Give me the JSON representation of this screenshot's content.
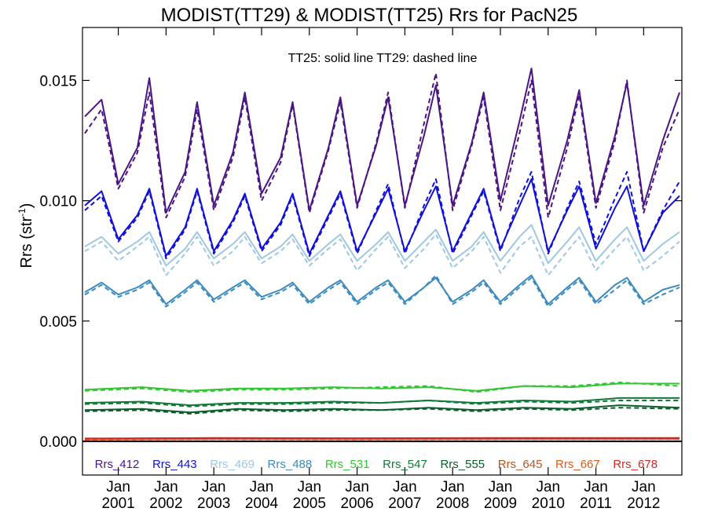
{
  "chart_data": {
    "type": "line",
    "title": "MODIST(TT29) & MODIST(TT25)  Rrs for PacN25",
    "ylabel": "Rrs (str",
    "ylabel_sup": "-1",
    "annotation": "TT25: solid line   TT29: dashed line",
    "xlim": [
      2000.25,
      2012.8
    ],
    "ylim": [
      -0.0014,
      0.0172
    ],
    "yticks": [
      0.0,
      0.005,
      0.01,
      0.015
    ],
    "ytick_labels": [
      "0.000",
      "0.005",
      "0.010",
      "0.015"
    ],
    "xticks": [
      2001,
      2002,
      2003,
      2004,
      2005,
      2006,
      2007,
      2008,
      2009,
      2010,
      2011,
      2012
    ],
    "xtick_top_labels": [
      "Jan",
      "Jan",
      "Jan",
      "Jan",
      "Jan",
      "Jan",
      "Jan",
      "Jan",
      "Jan",
      "Jan",
      "Jan",
      "Jan"
    ],
    "xtick_bottom_labels": [
      "2001",
      "2002",
      "2003",
      "2004",
      "2005",
      "2006",
      "2007",
      "2008",
      "2009",
      "2010",
      "2011",
      "2012"
    ],
    "zero_line": true,
    "grid": false,
    "legend_position": "bottom",
    "series": [
      {
        "name": "Rrs_412",
        "color": "#4b1583",
        "x": [
          2000.3,
          2000.65,
          2001.0,
          2001.4,
          2001.65,
          2002.0,
          2002.4,
          2002.65,
          2003.0,
          2003.4,
          2003.65,
          2004.0,
          2004.4,
          2004.65,
          2005.0,
          2005.4,
          2005.65,
          2006.0,
          2006.4,
          2006.65,
          2007.0,
          2007.4,
          2007.65,
          2008.0,
          2008.4,
          2008.65,
          2009.0,
          2009.4,
          2009.65,
          2010.0,
          2010.4,
          2010.65,
          2011.0,
          2011.4,
          2011.65,
          2012.0,
          2012.4,
          2012.75
        ],
        "tt25": [
          0.0135,
          0.0142,
          0.0107,
          0.0122,
          0.0151,
          0.0095,
          0.0112,
          0.0141,
          0.0098,
          0.012,
          0.0145,
          0.0103,
          0.0118,
          0.0141,
          0.0096,
          0.0122,
          0.0143,
          0.0098,
          0.0123,
          0.0143,
          0.0098,
          0.0127,
          0.0148,
          0.0098,
          0.0124,
          0.0145,
          0.01,
          0.0133,
          0.0155,
          0.0098,
          0.0125,
          0.0146,
          0.0099,
          0.0127,
          0.0149,
          0.0098,
          0.0125,
          0.0145
        ],
        "tt29": [
          0.0128,
          0.0138,
          0.0105,
          0.012,
          0.0145,
          0.0093,
          0.011,
          0.0138,
          0.0096,
          0.0118,
          0.0143,
          0.01,
          0.0116,
          0.014,
          0.0095,
          0.0121,
          0.0141,
          0.0097,
          0.0124,
          0.0145,
          0.0097,
          0.0132,
          0.0153,
          0.0096,
          0.0123,
          0.0143,
          0.0096,
          0.0128,
          0.015,
          0.0093,
          0.0122,
          0.0144,
          0.0097,
          0.0125,
          0.015,
          0.0095,
          0.0122,
          0.0138
        ]
      },
      {
        "name": "Rrs_443",
        "color": "#1010d8",
        "x": [
          2000.3,
          2000.65,
          2001.0,
          2001.4,
          2001.65,
          2002.0,
          2002.4,
          2002.65,
          2003.0,
          2003.4,
          2003.65,
          2004.0,
          2004.4,
          2004.65,
          2005.0,
          2005.4,
          2005.65,
          2006.0,
          2006.4,
          2006.65,
          2007.0,
          2007.4,
          2007.65,
          2008.0,
          2008.4,
          2008.65,
          2009.0,
          2009.4,
          2009.65,
          2010.0,
          2010.4,
          2010.65,
          2011.0,
          2011.4,
          2011.65,
          2012.0,
          2012.4,
          2012.75
        ],
        "tt25": [
          0.0098,
          0.0104,
          0.0084,
          0.0094,
          0.0105,
          0.0077,
          0.0089,
          0.0105,
          0.0079,
          0.0092,
          0.0103,
          0.008,
          0.0091,
          0.0103,
          0.0078,
          0.0094,
          0.0104,
          0.0079,
          0.0095,
          0.0105,
          0.0079,
          0.0096,
          0.0106,
          0.0079,
          0.0095,
          0.0105,
          0.008,
          0.0098,
          0.0109,
          0.0079,
          0.0096,
          0.0106,
          0.008,
          0.0097,
          0.0106,
          0.0079,
          0.0095,
          0.0102
        ],
        "tt29": [
          0.0096,
          0.0102,
          0.0083,
          0.0093,
          0.0104,
          0.0076,
          0.0088,
          0.0104,
          0.0078,
          0.0091,
          0.0102,
          0.0079,
          0.009,
          0.0102,
          0.0077,
          0.0093,
          0.0103,
          0.0078,
          0.0096,
          0.0107,
          0.0078,
          0.0098,
          0.0109,
          0.0078,
          0.0094,
          0.0104,
          0.0079,
          0.0101,
          0.0112,
          0.0078,
          0.0097,
          0.0108,
          0.0082,
          0.0101,
          0.0112,
          0.0079,
          0.0096,
          0.0108
        ]
      },
      {
        "name": "Rrs_469",
        "color": "#9ec8e2",
        "x": [
          2000.3,
          2000.65,
          2001.0,
          2001.4,
          2001.65,
          2002.0,
          2002.4,
          2002.65,
          2003.0,
          2003.4,
          2003.65,
          2004.0,
          2004.4,
          2004.65,
          2005.0,
          2005.4,
          2005.65,
          2006.0,
          2006.4,
          2006.65,
          2007.0,
          2007.4,
          2007.65,
          2008.0,
          2008.4,
          2008.65,
          2009.0,
          2009.4,
          2009.65,
          2010.0,
          2010.4,
          2010.65,
          2011.0,
          2011.4,
          2011.65,
          2012.0,
          2012.4,
          2012.75
        ],
        "tt25": [
          0.0081,
          0.0085,
          0.0078,
          0.0083,
          0.0087,
          0.0073,
          0.008,
          0.0087,
          0.0076,
          0.0082,
          0.0087,
          0.0076,
          0.0081,
          0.0086,
          0.0075,
          0.0082,
          0.0086,
          0.0075,
          0.0082,
          0.0087,
          0.0075,
          0.0083,
          0.0088,
          0.0075,
          0.0081,
          0.0087,
          0.0075,
          0.0085,
          0.009,
          0.0074,
          0.0083,
          0.0089,
          0.0075,
          0.0084,
          0.0089,
          0.0075,
          0.0082,
          0.0087
        ],
        "tt29": [
          0.0079,
          0.0083,
          0.0075,
          0.0081,
          0.0085,
          0.0069,
          0.0078,
          0.0085,
          0.0073,
          0.0079,
          0.0085,
          0.0074,
          0.0079,
          0.0084,
          0.0073,
          0.008,
          0.0084,
          0.0071,
          0.008,
          0.0085,
          0.0072,
          0.008,
          0.0086,
          0.0072,
          0.0079,
          0.0085,
          0.007,
          0.0081,
          0.0085,
          0.0069,
          0.0079,
          0.0085,
          0.0071,
          0.008,
          0.0085,
          0.0071,
          0.0077,
          0.0083
        ]
      },
      {
        "name": "Rrs_488",
        "color": "#3b8bbf",
        "x": [
          2000.3,
          2000.65,
          2001.0,
          2001.4,
          2001.65,
          2002.0,
          2002.4,
          2002.65,
          2003.0,
          2003.4,
          2003.65,
          2004.0,
          2004.4,
          2004.65,
          2005.0,
          2005.4,
          2005.65,
          2006.0,
          2006.4,
          2006.65,
          2007.0,
          2007.4,
          2007.65,
          2008.0,
          2008.4,
          2008.65,
          2009.0,
          2009.4,
          2009.65,
          2010.0,
          2010.4,
          2010.65,
          2011.0,
          2011.4,
          2011.65,
          2012.0,
          2012.4,
          2012.75
        ],
        "tt25": [
          0.0062,
          0.0066,
          0.0061,
          0.0064,
          0.0067,
          0.0057,
          0.0063,
          0.0067,
          0.0059,
          0.0064,
          0.0067,
          0.006,
          0.0063,
          0.0066,
          0.0058,
          0.0064,
          0.0067,
          0.0058,
          0.0064,
          0.0067,
          0.0058,
          0.0064,
          0.0068,
          0.0058,
          0.0063,
          0.0067,
          0.0058,
          0.0065,
          0.0069,
          0.0057,
          0.0064,
          0.0068,
          0.0058,
          0.0065,
          0.0068,
          0.0058,
          0.0063,
          0.0065
        ],
        "tt29": [
          0.0061,
          0.0065,
          0.006,
          0.0063,
          0.0066,
          0.0056,
          0.0062,
          0.0066,
          0.0058,
          0.0063,
          0.0066,
          0.0059,
          0.0062,
          0.0065,
          0.0057,
          0.0063,
          0.0066,
          0.0057,
          0.0063,
          0.0066,
          0.0057,
          0.0064,
          0.0069,
          0.0057,
          0.0062,
          0.0066,
          0.0057,
          0.0064,
          0.0068,
          0.0056,
          0.0063,
          0.0067,
          0.0057,
          0.0063,
          0.0067,
          0.0057,
          0.0061,
          0.0064
        ]
      },
      {
        "name": "Rrs_531",
        "color": "#33c633",
        "x": [
          2000.3,
          2001.5,
          2002.5,
          2003.5,
          2004.5,
          2005.5,
          2006.5,
          2007.5,
          2008.5,
          2009.5,
          2010.5,
          2011.5,
          2012.75
        ],
        "tt25": [
          0.00215,
          0.00225,
          0.0021,
          0.0022,
          0.0022,
          0.00225,
          0.0022,
          0.00225,
          0.0021,
          0.0023,
          0.00225,
          0.0024,
          0.0024
        ],
        "tt29": [
          0.0021,
          0.0022,
          0.00205,
          0.00215,
          0.00215,
          0.0022,
          0.00225,
          0.0023,
          0.00205,
          0.0023,
          0.0023,
          0.00245,
          0.0023
        ]
      },
      {
        "name": "Rrs_547",
        "color": "#0e7a36",
        "x": [
          2000.3,
          2001.5,
          2002.5,
          2003.5,
          2004.5,
          2005.5,
          2006.5,
          2007.5,
          2008.5,
          2009.5,
          2010.5,
          2011.5,
          2012.75
        ],
        "tt25": [
          0.0016,
          0.00165,
          0.0015,
          0.0016,
          0.0016,
          0.00165,
          0.0016,
          0.0017,
          0.0016,
          0.0017,
          0.00165,
          0.0018,
          0.0018
        ],
        "tt29": [
          0.00155,
          0.0016,
          0.00145,
          0.00155,
          0.00155,
          0.0016,
          0.0016,
          0.0017,
          0.00155,
          0.00165,
          0.0016,
          0.0017,
          0.0017
        ]
      },
      {
        "name": "Rrs_555",
        "color": "#0d5c2c",
        "x": [
          2000.3,
          2001.5,
          2002.5,
          2003.5,
          2004.5,
          2005.5,
          2006.5,
          2007.5,
          2008.5,
          2009.5,
          2010.5,
          2011.5,
          2012.75
        ],
        "tt25": [
          0.0013,
          0.00135,
          0.0012,
          0.00135,
          0.0013,
          0.00135,
          0.0013,
          0.0014,
          0.0013,
          0.0014,
          0.00135,
          0.0015,
          0.0014
        ],
        "tt29": [
          0.00125,
          0.0013,
          0.00115,
          0.0013,
          0.00125,
          0.0013,
          0.0013,
          0.00135,
          0.00125,
          0.00135,
          0.0013,
          0.0014,
          0.00135
        ]
      },
      {
        "name": "Rrs_645",
        "color": "#b8551e",
        "x": [
          2000.3,
          2003.0,
          2006.0,
          2009.0,
          2012.75
        ],
        "tt25": [
          0.0001,
          0.00012,
          0.00011,
          0.00012,
          0.00012
        ],
        "tt29": [
          9e-05,
          0.00011,
          0.0001,
          0.00011,
          0.00011
        ]
      },
      {
        "name": "Rrs_667",
        "color": "#de5a14",
        "x": [
          2000.3,
          2003.0,
          2006.0,
          2009.0,
          2012.75
        ],
        "tt25": [
          8e-05,
          0.0001,
          9e-05,
          0.0001,
          0.0001
        ],
        "tt29": [
          7e-05,
          9e-05,
          8e-05,
          9e-05,
          9e-05
        ]
      },
      {
        "name": "Rrs_678",
        "color": "#cf2a26",
        "x": [
          2000.3,
          2003.0,
          2006.0,
          2009.0,
          2012.75
        ],
        "tt25": [
          0.00012,
          0.00014,
          0.00013,
          0.00014,
          0.00014
        ],
        "tt29": [
          0.00011,
          0.00013,
          0.00012,
          0.00013,
          0.00013
        ]
      }
    ]
  }
}
